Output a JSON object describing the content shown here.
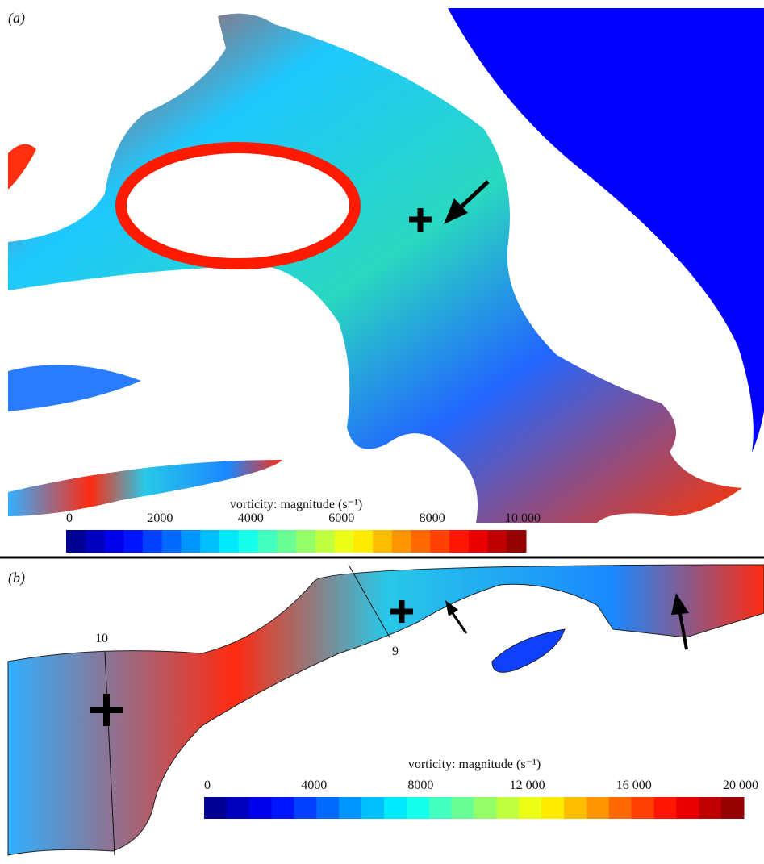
{
  "panels": [
    {
      "label": "(a)",
      "colorbar": {
        "title": "vorticity: magnitude (s⁻¹)",
        "ticks": [
          0,
          2000,
          4000,
          6000,
          8000,
          {
            "value": 10000,
            "label": "10 000"
          }
        ]
      }
    },
    {
      "label": "(b)",
      "colorbar": {
        "title": "vorticity: magnitude (s⁻¹)",
        "ticks": [
          0,
          4000,
          8000,
          {
            "value": 12000,
            "label": "12 000"
          },
          {
            "value": 16000,
            "label": "16 000"
          },
          {
            "value": 20000,
            "label": "20 000"
          }
        ]
      },
      "sections": [
        "10",
        "9"
      ]
    }
  ]
}
